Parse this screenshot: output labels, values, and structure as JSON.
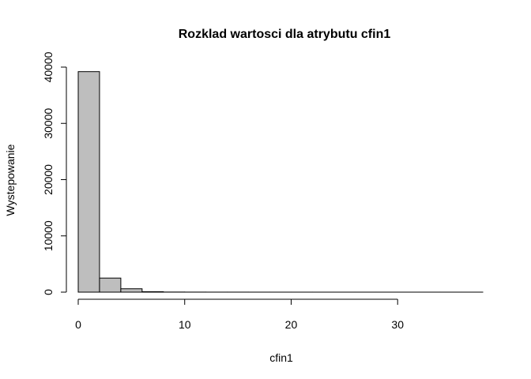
{
  "chart_data": {
    "type": "bar",
    "title": "Rozklad wartosci dla atrybutu cfin1",
    "xlabel": "cfin1",
    "ylabel": "Wystepowanie",
    "bin_edges": [
      0,
      2,
      4,
      6,
      8,
      10,
      12,
      14,
      16,
      18,
      20,
      22,
      24,
      26,
      28,
      30,
      32,
      34,
      36,
      38
    ],
    "values": [
      39200,
      2500,
      600,
      80,
      20,
      10,
      5,
      5,
      3,
      2,
      2,
      1,
      1,
      1,
      1,
      1,
      1,
      1,
      1
    ],
    "xlim": [
      0,
      38
    ],
    "ylim": [
      0,
      40000
    ],
    "x_ticks": [
      "0",
      "10",
      "20",
      "30"
    ],
    "y_ticks": [
      "0",
      "10000",
      "20000",
      "30000",
      "40000"
    ],
    "grid": false,
    "bar_color": "#bebebe",
    "bar_stroke": "#000000"
  }
}
